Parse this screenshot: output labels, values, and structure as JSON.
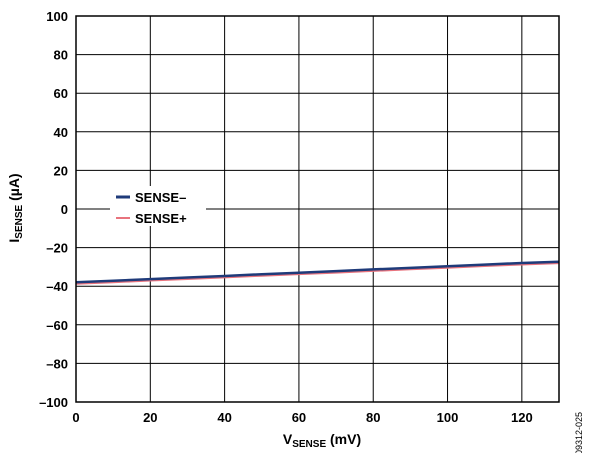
{
  "chart_data": {
    "type": "line",
    "xlabel": {
      "main": "V",
      "sub": "SENSE",
      "rest": " (mV)"
    },
    "ylabel": {
      "main": "I",
      "sub": "SENSE",
      "rest": " (µA)"
    },
    "xlim": [
      0,
      130
    ],
    "ylim": [
      -100,
      100
    ],
    "x_ticks": [
      0,
      20,
      40,
      60,
      80,
      100,
      120
    ],
    "y_ticks": [
      100,
      80,
      60,
      40,
      20,
      0,
      -20,
      -40,
      -60,
      -80,
      -100
    ],
    "x_tick_labels": [
      "0",
      "20",
      "40",
      "60",
      "80",
      "100",
      "120"
    ],
    "y_tick_labels": [
      "100",
      "80",
      "60",
      "40",
      "20",
      "0",
      "–20",
      "–40",
      "–60",
      "–80",
      "–100"
    ],
    "grid": true,
    "legend_position": "left-center",
    "series": [
      {
        "name": "SENSE–",
        "color": "#1f3b7a",
        "x": [
          0,
          10,
          20,
          30,
          40,
          50,
          60,
          70,
          80,
          90,
          100,
          110,
          120,
          130
        ],
        "y": [
          -38.0,
          -37.2,
          -36.3,
          -35.5,
          -34.7,
          -33.8,
          -33.0,
          -32.2,
          -31.3,
          -30.5,
          -29.7,
          -28.8,
          -28.0,
          -27.3
        ]
      },
      {
        "name": "SENSE+",
        "color": "#e8737d",
        "x": [
          0,
          10,
          20,
          30,
          40,
          50,
          60,
          70,
          80,
          90,
          100,
          110,
          120,
          130
        ],
        "y": [
          -38.8,
          -38.0,
          -37.1,
          -36.3,
          -35.5,
          -34.6,
          -33.8,
          -33.0,
          -32.1,
          -31.3,
          -30.5,
          -29.6,
          -28.8,
          -28.1
        ]
      }
    ]
  },
  "figure_id": "09312-025"
}
